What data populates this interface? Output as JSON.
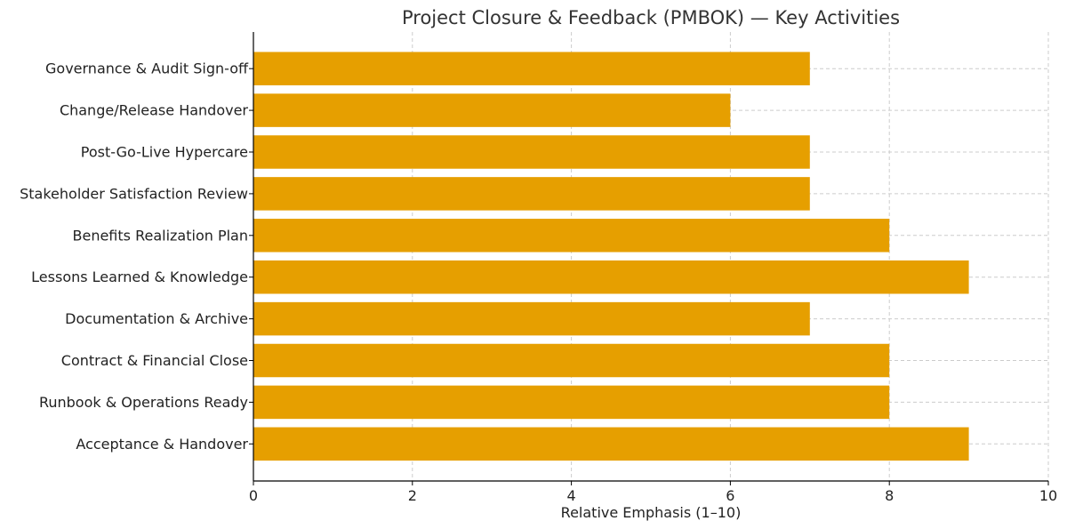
{
  "chart_data": {
    "type": "bar",
    "orientation": "horizontal",
    "title": "Project Closure & Feedback (PMBOK) — Key Activities",
    "xlabel": "Relative Emphasis (1–10)",
    "ylabel": "",
    "xlim": [
      0,
      10
    ],
    "xticks": [
      0,
      2,
      4,
      6,
      8,
      10
    ],
    "grid": true,
    "bar_color": "#e69f00",
    "categories": [
      "Governance & Audit Sign-off",
      "Change/Release Handover",
      "Post-Go-Live Hypercare",
      "Stakeholder Satisfaction Review",
      "Benefits Realization Plan",
      "Lessons Learned & Knowledge",
      "Documentation & Archive",
      "Contract & Financial Close",
      "Runbook & Operations Ready",
      "Acceptance & Handover"
    ],
    "values": [
      7,
      6,
      7,
      7,
      8,
      9,
      7,
      8,
      8,
      9
    ]
  }
}
